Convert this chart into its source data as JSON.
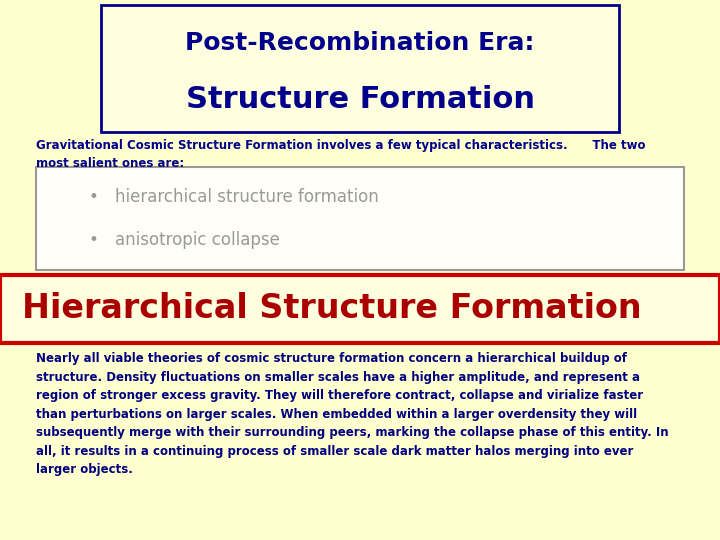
{
  "background_color": "#FFFFD0",
  "title_box": {
    "text_line1": "Post-Recombination Era:",
    "text_line2": "Structure Formation",
    "text_color": "#00008B",
    "box_facecolor": "#FFFFE0",
    "box_edgecolor": "#00008B",
    "fontsize_line1": 18,
    "fontsize_line2": 22
  },
  "intro_text": "Gravitational Cosmic Structure Formation involves a few typical characteristics.      The two\nmost salient ones are:",
  "intro_fontsize": 8.5,
  "intro_color": "#00008B",
  "bullet_box": {
    "bullets": [
      "hierarchical structure formation",
      "anisotropic collapse"
    ],
    "text_color": "#999999",
    "box_edgecolor": "#999999",
    "box_facecolor": "#FFFFF8",
    "fontsize": 12
  },
  "section_header": {
    "text": "Hierarchical Structure Formation",
    "text_color": "#AA0000",
    "box_facecolor": "#FFFFE0",
    "box_edgecolor": "#CC0000",
    "fontsize": 24
  },
  "body_text": "Nearly all viable theories of cosmic structure formation concern a hierarchical buildup of\nstructure. Density fluctuations on smaller scales have a higher amplitude, and represent a\nregion of stronger excess gravity. They will therefore contract, collapse and virialize faster\nthan perturbations on larger scales. When embedded within a larger overdensity they will\nsubsequently merge with their surrounding peers, marking the collapse phase of this entity. In\nall, it results in a continuing process of smaller scale dark matter halos merging into ever\nlarger objects.",
  "body_fontsize": 8.5,
  "body_color": "#000080"
}
